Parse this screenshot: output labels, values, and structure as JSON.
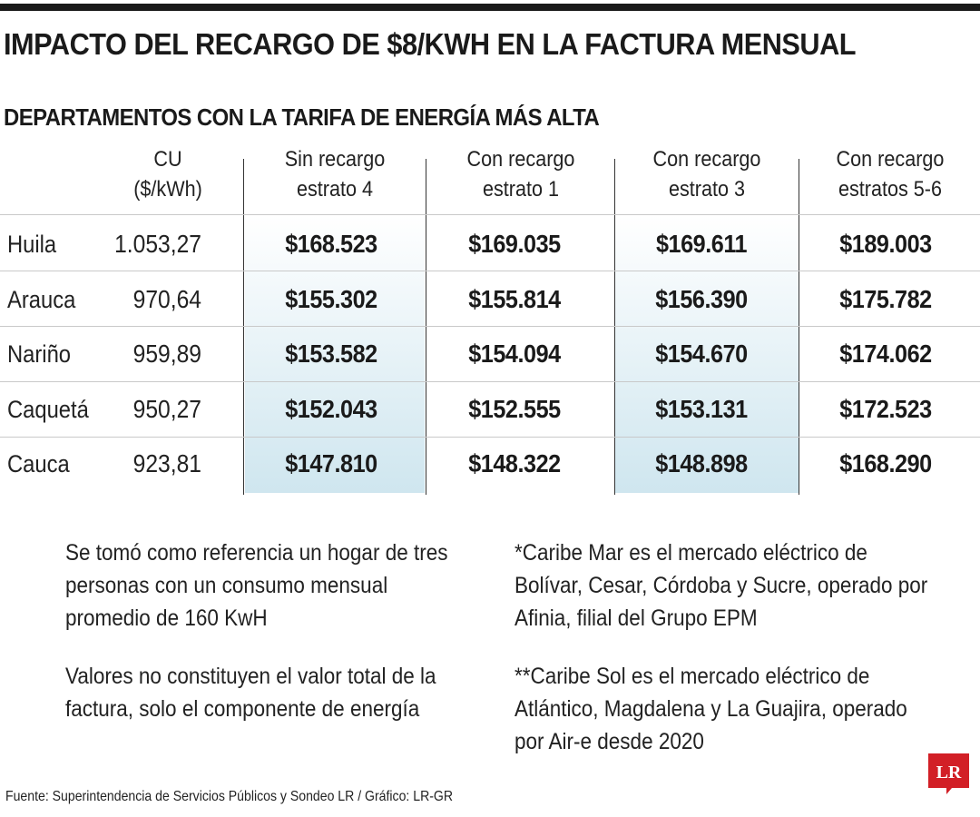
{
  "title": "IMPACTO DEL RECARGO DE $8/KWH EN LA FACTURA MENSUAL",
  "subtitle": "DEPARTAMENTOS CON LA TARIFA DE ENERGÍA MÁS ALTA",
  "colors": {
    "text": "#1a1a1a",
    "highlight": "#cfe6ef",
    "brand_red": "#d21f26"
  },
  "chart_data": {
    "type": "table",
    "columns": [
      {
        "line1": "CU",
        "line2": "($/kWh)"
      },
      {
        "line1": "Sin recargo",
        "line2": "estrato 4"
      },
      {
        "line1": "Con recargo",
        "line2": "estrato 1"
      },
      {
        "line1": "Con recargo",
        "line2": "estrato 3"
      },
      {
        "line1": "Con recargo",
        "line2": "estratos 5-6"
      }
    ],
    "rows": [
      {
        "dept": "Huila",
        "cu": "1.053,27",
        "values": [
          "$168.523",
          "$169.035",
          "$169.611",
          "$189.003"
        ]
      },
      {
        "dept": "Arauca",
        "cu": "970,64",
        "values": [
          "$155.302",
          "$155.814",
          "$156.390",
          "$175.782"
        ]
      },
      {
        "dept": "Nariño",
        "cu": "959,89",
        "values": [
          "$153.582",
          "$154.094",
          "$154.670",
          "$174.062"
        ]
      },
      {
        "dept": "Caquetá",
        "cu": "950,27",
        "values": [
          "$152.043",
          "$152.555",
          "$153.131",
          "$172.523"
        ]
      },
      {
        "dept": "Cauca",
        "cu": "923,81",
        "values": [
          "$147.810",
          "$148.322",
          "$148.898",
          "$168.290"
        ]
      }
    ]
  },
  "notes": {
    "left_1": [
      "Se tomó como referencia un hogar de tres",
      "personas con un consumo mensual",
      "promedio de 160 KwH"
    ],
    "left_2": [
      "Valores no constituyen el valor total de la",
      "factura, solo el componente de energía"
    ],
    "right_1": [
      "*Caribe Mar es el mercado eléctrico de",
      "Bolívar, Cesar, Córdoba y Sucre, operado por",
      "Afinia, filial del Grupo EPM"
    ],
    "right_2": [
      "**Caribe Sol es el mercado eléctrico de",
      "Atlántico, Magdalena y La Guajira, operado",
      "por Air-e desde 2020"
    ]
  },
  "source": "Fuente: Superintendencia de Servicios Públicos y Sondeo LR / Gráfico: LR-GR",
  "logo_text": "LR"
}
